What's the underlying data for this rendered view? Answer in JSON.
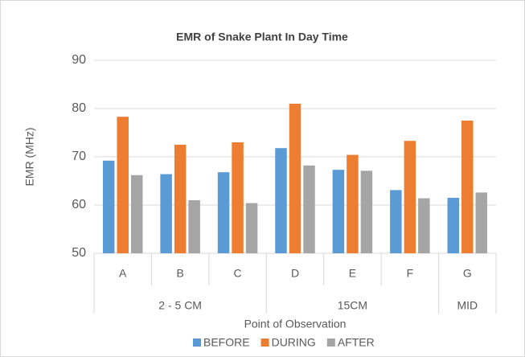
{
  "chart_data": {
    "type": "bar",
    "title": "EMR of Snake Plant In Day Time",
    "x_label": "Point of Observation",
    "y_label": "EMR (MHz)",
    "category_groups": [
      {
        "name": "2 - 5 CM",
        "categories": [
          "A",
          "B",
          "C"
        ]
      },
      {
        "name": "15CM",
        "categories": [
          "D",
          "E",
          "F"
        ]
      },
      {
        "name": "MID",
        "categories": [
          "G"
        ]
      }
    ],
    "series": [
      {
        "name": "BEFORE",
        "color": "#5b9bd5",
        "values": [
          69.2,
          66.4,
          66.8,
          71.8,
          67.3,
          63.1,
          61.5
        ]
      },
      {
        "name": "DURING",
        "color": "#ed7d31",
        "values": [
          78.3,
          72.5,
          73.0,
          81.0,
          70.4,
          73.3,
          77.5
        ]
      },
      {
        "name": "AFTER",
        "color": "#a5a5a5",
        "values": [
          66.2,
          61.0,
          60.4,
          68.2,
          67.1,
          61.4,
          62.6
        ]
      }
    ],
    "ylim": [
      50,
      90
    ],
    "yticks": [
      50,
      60,
      70,
      80,
      90
    ],
    "grid": true,
    "legend": "bottom"
  }
}
